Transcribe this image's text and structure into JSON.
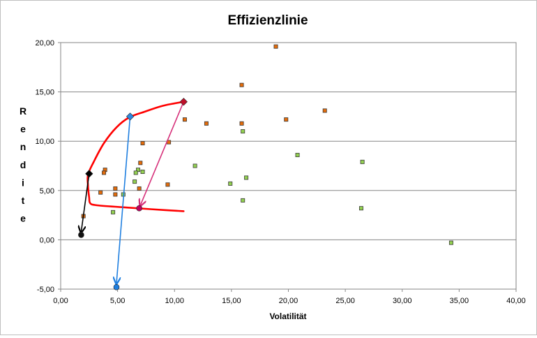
{
  "chart_data": {
    "type": "scatter",
    "title": "Effizienzlinie",
    "xlabel": "Volatilität",
    "ylabel": "Rendite",
    "xlim": [
      0,
      40
    ],
    "ylim": [
      -5,
      20
    ],
    "grid": "horizontal",
    "x_ticks": [
      "0,00",
      "5,00",
      "10,00",
      "15,00",
      "20,00",
      "25,00",
      "30,00",
      "35,00",
      "40,00"
    ],
    "y_ticks": [
      "20,00",
      "15,00",
      "10,00",
      "5,00",
      "0,00",
      "-5,00"
    ],
    "colors": {
      "series_orange": "#e46c0a",
      "series_green": "#92d050",
      "curve": "#ff0000",
      "arrow_black": "#000000",
      "arrow_blue": "#1f7fe0",
      "arrow_magenta": "#d6307a",
      "marker_pink": "#c00060",
      "marker_blue_dot": "#1f7fe0",
      "marker_black_dot": "#111111",
      "diamond_black": "#000000",
      "diamond_blue": "#2e86de",
      "diamond_red": "#c0102a"
    },
    "series": [
      {
        "name": "Orange",
        "marker": "square",
        "points": [
          {
            "x": 18.9,
            "y": 19.6
          },
          {
            "x": 15.9,
            "y": 15.7
          },
          {
            "x": 23.2,
            "y": 13.1
          },
          {
            "x": 10.9,
            "y": 12.2
          },
          {
            "x": 12.8,
            "y": 11.8
          },
          {
            "x": 15.9,
            "y": 11.8
          },
          {
            "x": 19.8,
            "y": 12.2
          },
          {
            "x": 7.2,
            "y": 9.8
          },
          {
            "x": 9.5,
            "y": 9.9
          },
          {
            "x": 7.0,
            "y": 7.8
          },
          {
            "x": 3.9,
            "y": 7.1
          },
          {
            "x": 3.8,
            "y": 6.8
          },
          {
            "x": 9.4,
            "y": 5.6
          },
          {
            "x": 3.5,
            "y": 4.8
          },
          {
            "x": 4.8,
            "y": 5.2
          },
          {
            "x": 6.9,
            "y": 5.2
          },
          {
            "x": 4.8,
            "y": 4.6
          },
          {
            "x": 2.0,
            "y": 2.4
          }
        ]
      },
      {
        "name": "Green",
        "marker": "square",
        "points": [
          {
            "x": 16.0,
            "y": 11.0
          },
          {
            "x": 20.8,
            "y": 8.6
          },
          {
            "x": 26.5,
            "y": 7.9
          },
          {
            "x": 11.8,
            "y": 7.5
          },
          {
            "x": 6.8,
            "y": 7.1
          },
          {
            "x": 6.6,
            "y": 6.8
          },
          {
            "x": 7.2,
            "y": 6.9
          },
          {
            "x": 16.3,
            "y": 6.3
          },
          {
            "x": 6.5,
            "y": 5.9
          },
          {
            "x": 14.9,
            "y": 5.7
          },
          {
            "x": 5.5,
            "y": 4.6
          },
          {
            "x": 16.0,
            "y": 4.0
          },
          {
            "x": 26.4,
            "y": 3.2
          },
          {
            "x": 4.6,
            "y": 2.8
          },
          {
            "x": 34.3,
            "y": -0.3
          }
        ]
      }
    ],
    "frontier_curve": [
      {
        "x": 10.8,
        "y": 14.0
      },
      {
        "x": 9.0,
        "y": 13.6
      },
      {
        "x": 7.4,
        "y": 13.0
      },
      {
        "x": 6.0,
        "y": 12.4
      },
      {
        "x": 4.9,
        "y": 11.4
      },
      {
        "x": 3.8,
        "y": 9.8
      },
      {
        "x": 2.9,
        "y": 7.9
      },
      {
        "x": 2.4,
        "y": 6.6
      },
      {
        "x": 2.4,
        "y": 5.5
      },
      {
        "x": 2.5,
        "y": 4.3
      },
      {
        "x": 2.6,
        "y": 3.7
      },
      {
        "x": 3.2,
        "y": 3.5
      },
      {
        "x": 5.5,
        "y": 3.3
      },
      {
        "x": 8.0,
        "y": 3.1
      },
      {
        "x": 10.8,
        "y": 2.9
      }
    ],
    "special_markers": [
      {
        "name": "diamond-black",
        "shape": "diamond",
        "x": 2.5,
        "y": 6.7,
        "color": "#000000"
      },
      {
        "name": "diamond-blue",
        "shape": "diamond",
        "x": 6.1,
        "y": 12.5,
        "color": "#2e86de"
      },
      {
        "name": "diamond-red",
        "shape": "diamond",
        "x": 10.8,
        "y": 14.0,
        "color": "#c0102a"
      },
      {
        "name": "dot-pink",
        "shape": "circle",
        "x": 6.9,
        "y": 3.2,
        "color": "#c00060"
      },
      {
        "name": "dot-blue",
        "shape": "circle",
        "x": 4.9,
        "y": -4.8,
        "color": "#1f7fe0"
      },
      {
        "name": "dot-black",
        "shape": "circle",
        "x": 1.8,
        "y": 0.5,
        "color": "#111111"
      }
    ],
    "arrows": [
      {
        "name": "arrow-black",
        "from": {
          "x": 2.5,
          "y": 6.7
        },
        "to": {
          "x": 1.8,
          "y": 0.8
        },
        "color": "#000000"
      },
      {
        "name": "arrow-blue",
        "from": {
          "x": 6.1,
          "y": 12.5
        },
        "to": {
          "x": 4.9,
          "y": -4.4
        },
        "color": "#1f7fe0"
      },
      {
        "name": "arrow-magenta",
        "from": {
          "x": 10.8,
          "y": 14.0
        },
        "to": {
          "x": 7.0,
          "y": 3.5
        },
        "color": "#d6307a"
      }
    ]
  }
}
